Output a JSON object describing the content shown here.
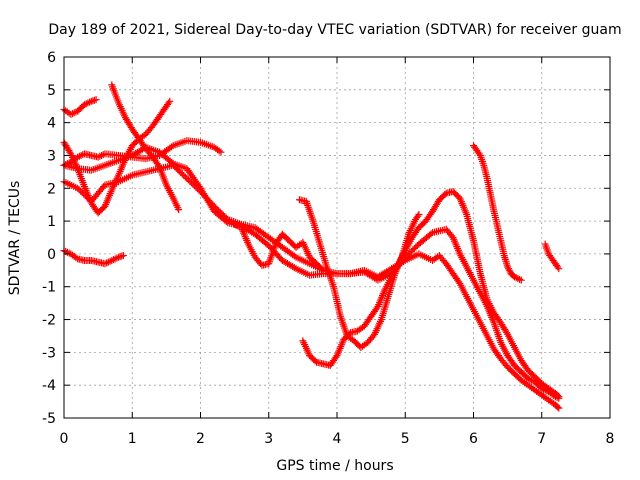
{
  "chart_data": {
    "type": "scatter",
    "title": "Day 189 of 2021, Sidereal Day-to-day VTEC variation (SDTVAR) for receiver guam",
    "xlabel": "GPS time / hours",
    "ylabel": "SDTVAR / TECUs",
    "xlim": [
      0,
      8
    ],
    "ylim": [
      -5,
      6
    ],
    "xticks": [
      "0",
      "1",
      "2",
      "3",
      "4",
      "5",
      "6",
      "7",
      "8"
    ],
    "yticks": [
      "-5",
      "-4",
      "-3",
      "-2",
      "-1",
      "0",
      "1",
      "2",
      "3",
      "4",
      "5",
      "6"
    ],
    "grid": true,
    "marker": "plus",
    "color": "#ff0000",
    "series": [
      {
        "x": [
          0.0,
          0.1,
          0.2,
          0.3,
          0.4,
          0.47
        ],
        "y": [
          4.4,
          4.25,
          4.35,
          4.55,
          4.65,
          4.7
        ]
      },
      {
        "x": [
          0.0,
          0.1,
          0.2,
          0.3,
          0.4,
          0.5,
          0.6,
          0.7,
          0.8,
          0.87
        ],
        "y": [
          0.1,
          0.0,
          -0.15,
          -0.2,
          -0.2,
          -0.25,
          -0.3,
          -0.2,
          -0.1,
          -0.05
        ]
      },
      {
        "x": [
          0.0,
          0.1,
          0.2,
          0.3,
          0.4,
          0.5,
          0.6,
          0.8,
          1.0,
          1.2,
          1.4,
          1.6,
          1.8,
          2.0,
          2.2,
          2.3
        ],
        "y": [
          2.7,
          2.8,
          2.95,
          3.05,
          3.0,
          2.95,
          3.05,
          3.0,
          2.95,
          2.9,
          3.0,
          3.3,
          3.45,
          3.4,
          3.25,
          3.1
        ]
      },
      {
        "x": [
          0.0,
          0.2,
          0.4,
          0.6,
          0.8,
          1.0,
          1.2,
          1.4,
          1.6,
          1.8,
          2.0,
          2.2,
          2.4,
          2.6,
          2.8,
          3.0,
          3.2,
          3.4,
          3.6,
          3.8,
          4.0,
          4.2,
          4.4,
          4.6,
          4.8,
          5.0,
          5.2,
          5.4,
          5.6,
          5.7,
          5.8,
          5.9,
          6.0,
          6.1,
          6.2,
          6.3,
          6.4,
          6.5,
          6.6,
          6.7,
          6.8,
          6.9,
          7.0,
          7.1,
          7.2,
          7.25
        ],
        "y": [
          2.2,
          2.0,
          1.6,
          2.1,
          2.2,
          2.4,
          2.5,
          2.6,
          2.7,
          2.3,
          1.9,
          1.45,
          1.05,
          0.9,
          0.8,
          0.5,
          0.2,
          -0.1,
          -0.3,
          -0.5,
          -0.6,
          -0.6,
          -0.55,
          -0.8,
          -0.6,
          -0.1,
          0.3,
          0.65,
          0.75,
          0.5,
          0.0,
          -0.4,
          -0.8,
          -1.2,
          -1.6,
          -2.1,
          -2.7,
          -3.1,
          -3.4,
          -3.6,
          -3.8,
          -3.9,
          -4.1,
          -4.2,
          -4.35,
          -4.4
        ]
      },
      {
        "x": [
          0.0,
          0.2,
          0.4,
          0.6,
          0.8,
          1.0,
          1.2,
          1.4,
          1.6,
          1.8,
          2.0,
          2.2,
          2.4,
          2.6,
          2.8,
          3.0,
          3.2,
          3.4,
          3.6,
          3.8,
          4.0,
          4.2,
          4.4,
          4.6,
          4.8,
          5.0,
          5.2,
          5.4,
          5.5,
          5.6,
          5.7,
          5.8,
          5.9,
          6.0,
          6.1,
          6.2,
          6.3,
          6.4,
          6.5,
          6.6,
          6.7,
          6.8,
          6.9,
          7.0,
          7.1,
          7.2,
          7.25
        ],
        "y": [
          2.7,
          2.6,
          2.55,
          2.7,
          2.85,
          3.0,
          3.25,
          3.1,
          2.75,
          2.6,
          2.0,
          1.3,
          0.95,
          0.85,
          0.6,
          0.25,
          -0.2,
          -0.45,
          -0.65,
          -0.6,
          -0.6,
          -0.6,
          -0.5,
          -0.7,
          -0.45,
          -0.2,
          0.0,
          -0.2,
          -0.05,
          -0.3,
          -0.6,
          -0.9,
          -1.3,
          -1.7,
          -2.1,
          -2.5,
          -2.9,
          -3.2,
          -3.45,
          -3.65,
          -3.85,
          -4.0,
          -4.15,
          -4.3,
          -4.45,
          -4.6,
          -4.7
        ]
      },
      {
        "x": [
          0.0,
          0.1,
          0.2,
          0.3,
          0.4,
          0.5,
          0.6,
          0.7,
          0.8,
          0.9,
          1.0,
          1.1,
          1.2,
          1.3,
          1.4,
          1.5,
          1.55
        ],
        "y": [
          3.4,
          3.05,
          2.6,
          2.05,
          1.55,
          1.25,
          1.45,
          1.95,
          2.4,
          2.9,
          3.3,
          3.5,
          3.65,
          3.9,
          4.2,
          4.5,
          4.65
        ]
      },
      {
        "x": [
          0.7,
          0.8,
          0.9,
          1.0,
          1.1,
          1.2,
          1.3,
          1.4,
          1.5,
          1.6,
          1.68
        ],
        "y": [
          5.15,
          4.6,
          4.15,
          3.8,
          3.5,
          3.2,
          2.95,
          2.65,
          2.1,
          1.7,
          1.35
        ]
      },
      {
        "x": [
          3.5,
          3.6,
          3.7,
          3.8,
          3.9,
          4.0,
          4.1,
          4.2,
          4.3,
          4.4,
          4.5,
          4.6,
          4.7,
          4.8,
          4.9,
          5.0,
          5.1,
          5.2,
          5.3,
          5.4,
          5.5,
          5.6,
          5.7,
          5.8,
          5.9,
          6.0,
          6.1,
          6.2,
          6.3,
          6.4,
          6.5,
          6.6,
          6.7,
          6.8,
          6.9,
          7.0,
          7.1,
          7.2,
          7.25
        ],
        "y": [
          -2.65,
          -3.1,
          -3.3,
          -3.35,
          -3.4,
          -3.1,
          -2.6,
          -2.4,
          -2.35,
          -2.2,
          -1.9,
          -1.6,
          -1.1,
          -0.7,
          -0.3,
          0.1,
          0.5,
          0.8,
          1.0,
          1.3,
          1.65,
          1.85,
          1.9,
          1.7,
          1.2,
          0.4,
          -0.6,
          -1.4,
          -1.8,
          -2.1,
          -2.45,
          -2.85,
          -3.25,
          -3.55,
          -3.75,
          -3.95,
          -4.1,
          -4.25,
          -4.35
        ]
      },
      {
        "x": [
          3.45,
          3.55,
          3.65,
          3.75,
          3.85,
          3.95,
          4.05,
          4.15,
          4.25,
          4.35,
          4.45,
          4.55,
          4.65,
          4.75,
          4.85,
          4.95,
          5.05,
          5.15,
          5.2
        ],
        "y": [
          1.65,
          1.6,
          1.0,
          0.3,
          -0.4,
          -1.0,
          -1.9,
          -2.5,
          -2.65,
          -2.85,
          -2.7,
          -2.45,
          -2.0,
          -1.3,
          -0.6,
          -0.1,
          0.6,
          1.05,
          1.2
        ]
      },
      {
        "x": [
          6.0,
          6.1,
          6.15,
          6.2,
          6.3,
          6.4,
          6.45,
          6.5,
          6.55,
          6.6,
          6.7
        ],
        "y": [
          3.3,
          3.0,
          2.7,
          2.3,
          1.3,
          0.4,
          -0.05,
          -0.4,
          -0.6,
          -0.7,
          -0.8
        ]
      },
      {
        "x": [
          2.5,
          2.6,
          2.7,
          2.8,
          2.9,
          3.0,
          3.1,
          3.2,
          3.3,
          3.4,
          3.5,
          3.6,
          3.7,
          3.8
        ],
        "y": [
          0.9,
          0.8,
          0.3,
          -0.1,
          -0.35,
          -0.3,
          0.3,
          0.6,
          0.4,
          0.2,
          0.35,
          -0.1,
          -0.3,
          -0.5
        ]
      },
      {
        "x": [
          7.05,
          7.1,
          7.15,
          7.2,
          7.25
        ],
        "y": [
          0.3,
          0.0,
          -0.15,
          -0.3,
          -0.45
        ]
      }
    ]
  }
}
